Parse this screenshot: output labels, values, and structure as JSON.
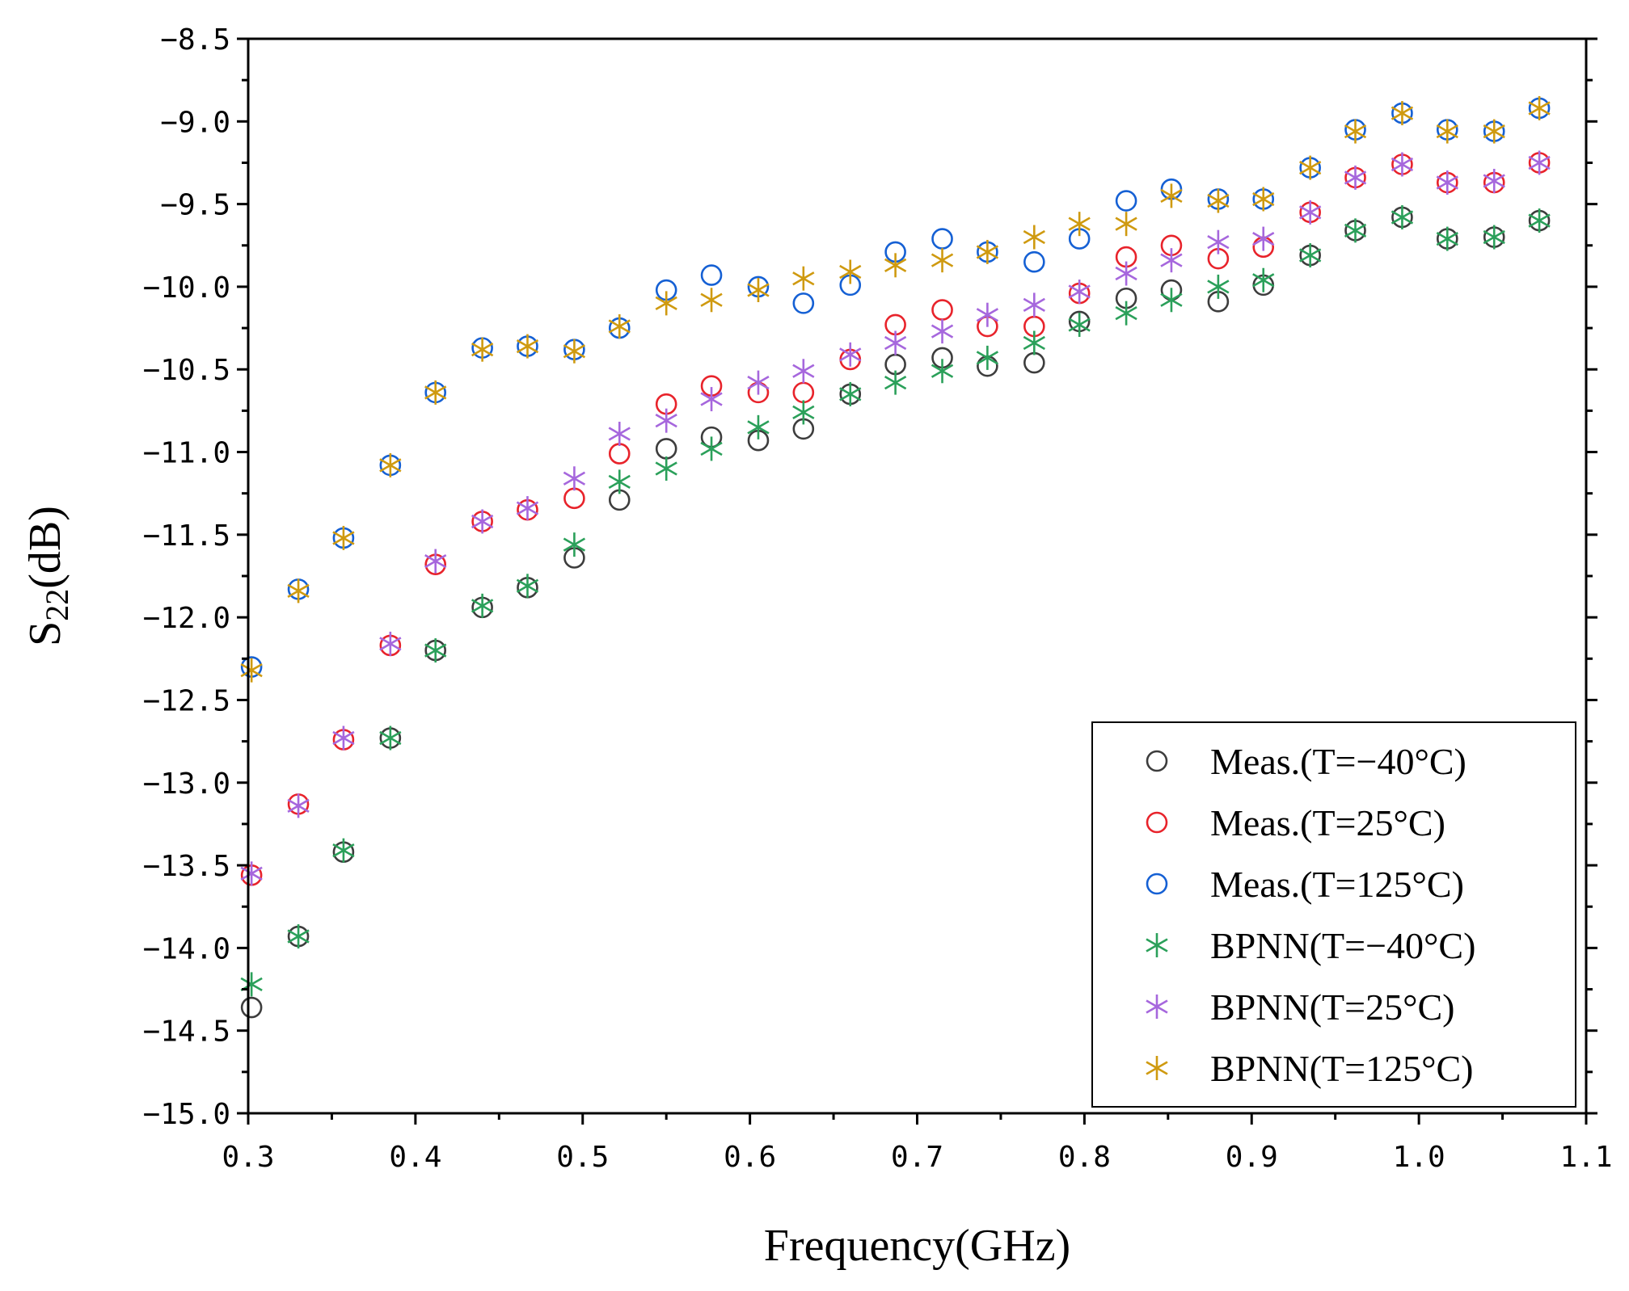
{
  "chart_data": {
    "type": "scatter",
    "title": "",
    "xlabel": "Frequency(GHz)",
    "ylabel_main": "S",
    "ylabel_sub": "22",
    "ylabel_unit": "(dB)",
    "xlim": [
      0.3,
      1.1
    ],
    "ylim": [
      -15.0,
      -8.5
    ],
    "x_ticks": [
      0.3,
      0.4,
      0.5,
      0.6,
      0.7,
      0.8,
      0.9,
      1.0,
      1.1
    ],
    "x_tick_labels": [
      "0.3",
      "0.4",
      "0.5",
      "0.6",
      "0.7",
      "0.8",
      "0.9",
      "1.0",
      "1.1"
    ],
    "y_ticks": [
      -8.5,
      -9.0,
      -9.5,
      -10.0,
      -10.5,
      -11.0,
      -11.5,
      -12.0,
      -12.5,
      -13.0,
      -13.5,
      -14.0,
      -14.5,
      -15.0
    ],
    "y_tick_labels": [
      "−8.5",
      "−9.0",
      "−9.5",
      "−10.0",
      "−10.5",
      "−11.0",
      "−11.5",
      "−12.0",
      "−12.5",
      "−13.0",
      "−13.5",
      "−14.0",
      "−14.5",
      "−15.0"
    ],
    "grid": false,
    "legend_position": "bottom-right",
    "x": [
      0.302,
      0.33,
      0.357,
      0.385,
      0.412,
      0.44,
      0.467,
      0.495,
      0.522,
      0.55,
      0.577,
      0.605,
      0.632,
      0.66,
      0.687,
      0.715,
      0.742,
      0.77,
      0.797,
      0.825,
      0.852,
      0.88,
      0.907,
      0.935,
      0.962,
      0.99,
      1.017,
      1.045,
      1.072
    ],
    "series": [
      {
        "name": "Meas.(T=−40°C)",
        "marker": "circle",
        "color": "#3d3d3d",
        "values": [
          -14.36,
          -13.93,
          -13.42,
          -12.73,
          -12.2,
          -11.94,
          -11.82,
          -11.64,
          -11.29,
          -10.98,
          -10.91,
          -10.93,
          -10.86,
          -10.65,
          -10.47,
          -10.43,
          -10.48,
          -10.46,
          -10.21,
          -10.07,
          -10.02,
          -10.09,
          -9.99,
          -9.81,
          -9.66,
          -9.58,
          -9.71,
          -9.7,
          -9.6
        ]
      },
      {
        "name": "Meas.(T=25°C)",
        "marker": "circle",
        "color": "#e8232b",
        "values": [
          -13.56,
          -13.13,
          -12.74,
          -12.17,
          -11.68,
          -11.42,
          -11.35,
          -11.28,
          -11.01,
          -10.71,
          -10.6,
          -10.64,
          -10.64,
          -10.44,
          -10.23,
          -10.14,
          -10.24,
          -10.24,
          -10.04,
          -9.82,
          -9.75,
          -9.83,
          -9.76,
          -9.55,
          -9.34,
          -9.26,
          -9.37,
          -9.37,
          -9.25
        ]
      },
      {
        "name": "Meas.(T=125°C)",
        "marker": "circle",
        "color": "#1560d4",
        "values": [
          -12.3,
          -11.83,
          -11.52,
          -11.08,
          -10.64,
          -10.37,
          -10.36,
          -10.38,
          -10.25,
          -10.02,
          -9.93,
          -10.0,
          -10.1,
          -9.99,
          -9.79,
          -9.71,
          -9.79,
          -9.85,
          -9.71,
          -9.48,
          -9.41,
          -9.47,
          -9.47,
          -9.28,
          -9.05,
          -8.95,
          -9.05,
          -9.06,
          -8.92
        ]
      },
      {
        "name": "BPNN(T=−40°C)",
        "marker": "asterisk",
        "color": "#2ba05a",
        "values": [
          -14.22,
          -13.93,
          -13.41,
          -12.73,
          -12.2,
          -11.93,
          -11.81,
          -11.56,
          -11.18,
          -11.1,
          -10.98,
          -10.85,
          -10.76,
          -10.65,
          -10.58,
          -10.51,
          -10.43,
          -10.34,
          -10.23,
          -10.16,
          -10.08,
          -10.0,
          -9.96,
          -9.81,
          -9.66,
          -9.58,
          -9.71,
          -9.7,
          -9.6
        ]
      },
      {
        "name": "BPNN(T=25°C)",
        "marker": "asterisk",
        "color": "#a667dd",
        "values": [
          -13.55,
          -13.14,
          -12.73,
          -12.16,
          -11.66,
          -11.42,
          -11.34,
          -11.16,
          -10.89,
          -10.81,
          -10.68,
          -10.58,
          -10.51,
          -10.41,
          -10.34,
          -10.27,
          -10.17,
          -10.11,
          -10.03,
          -9.92,
          -9.84,
          -9.73,
          -9.71,
          -9.55,
          -9.34,
          -9.26,
          -9.37,
          -9.36,
          -9.25
        ]
      },
      {
        "name": "BPNN(T=125°C)",
        "marker": "asterisk",
        "color": "#cf9a10",
        "values": [
          -12.32,
          -11.84,
          -11.52,
          -11.08,
          -10.64,
          -10.38,
          -10.36,
          -10.39,
          -10.24,
          -10.1,
          -10.08,
          -10.02,
          -9.95,
          -9.91,
          -9.87,
          -9.84,
          -9.79,
          -9.7,
          -9.62,
          -9.62,
          -9.45,
          -9.48,
          -9.47,
          -9.28,
          -9.06,
          -8.95,
          -9.06,
          -9.06,
          -8.92
        ]
      }
    ]
  }
}
